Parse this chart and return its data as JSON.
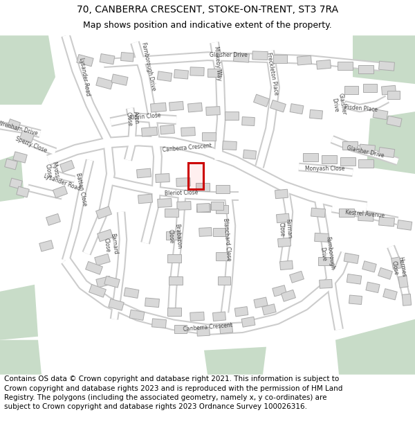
{
  "title_line1": "70, CANBERRA CRESCENT, STOKE-ON-TRENT, ST3 7RA",
  "title_line2": "Map shows position and indicative extent of the property.",
  "copyright_text": "Contains OS data © Crown copyright and database right 2021. This information is subject to Crown copyright and database rights 2023 and is reproduced with the permission of HM Land Registry. The polygons (including the associated geometry, namely x, y co-ordinates) are subject to Crown copyright and database rights 2023 Ordnance Survey 100026316.",
  "bg_color": "#ffffff",
  "map_bg": "#eeeeee",
  "road_color": "#ffffff",
  "road_outline": "#cccccc",
  "building_fill": "#d8d8d8",
  "building_outline": "#aaaaaa",
  "green_area": "#c8dcc8",
  "title_fontsize": 10,
  "subtitle_fontsize": 9,
  "copyright_fontsize": 7.5,
  "label_fontsize": 5.5,
  "label_color": "#444444"
}
